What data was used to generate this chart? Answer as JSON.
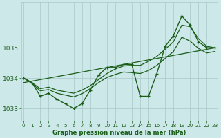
{
  "hours_main": [
    0,
    1,
    2,
    3,
    4,
    5,
    6,
    7,
    8,
    9,
    10,
    11,
    12,
    13,
    14,
    15,
    16,
    17,
    18,
    19,
    20,
    21,
    22,
    23
  ],
  "main_line": [
    1034.0,
    1033.85,
    1033.4,
    1033.5,
    1033.3,
    1033.15,
    1033.0,
    1033.15,
    1033.6,
    1034.1,
    1034.35,
    1034.35,
    1034.45,
    1034.45,
    1033.4,
    1033.4,
    1034.15,
    1035.05,
    1035.4,
    1036.05,
    1035.75,
    1035.2,
    1035.0,
    1035.0
  ],
  "smooth_upper": [
    1034.0,
    1033.85,
    1033.65,
    1033.7,
    1033.6,
    1033.55,
    1033.5,
    1033.6,
    1033.75,
    1033.95,
    1034.15,
    1034.3,
    1034.4,
    1034.42,
    1034.42,
    1034.55,
    1034.72,
    1034.95,
    1035.2,
    1035.75,
    1035.7,
    1035.3,
    1035.05,
    1035.0
  ],
  "smooth_lower": [
    1034.0,
    1033.82,
    1033.58,
    1033.62,
    1033.5,
    1033.44,
    1033.38,
    1033.48,
    1033.65,
    1033.85,
    1034.02,
    1034.12,
    1034.2,
    1034.18,
    1034.15,
    1034.25,
    1034.42,
    1034.65,
    1034.88,
    1035.35,
    1035.22,
    1034.98,
    1034.83,
    1034.88
  ],
  "trend_x": [
    0,
    23
  ],
  "trend_y": [
    1033.85,
    1035.0
  ],
  "ylim": [
    1032.6,
    1036.5
  ],
  "xlim": [
    -0.3,
    23.3
  ],
  "yticks": [
    1033,
    1034,
    1035
  ],
  "xticks": [
    0,
    1,
    2,
    3,
    4,
    5,
    6,
    7,
    8,
    9,
    10,
    11,
    12,
    13,
    14,
    15,
    16,
    17,
    18,
    19,
    20,
    21,
    22,
    23
  ],
  "line_color": "#1a5e1a",
  "bg_color": "#cce8e8",
  "grid_color": "#aac8c8",
  "xlabel": "Graphe pression niveau de la mer (hPa)",
  "xlabel_color": "#1a5e1a",
  "tick_color": "#1a5e1a",
  "label_bg_color": "#2d6a2d"
}
